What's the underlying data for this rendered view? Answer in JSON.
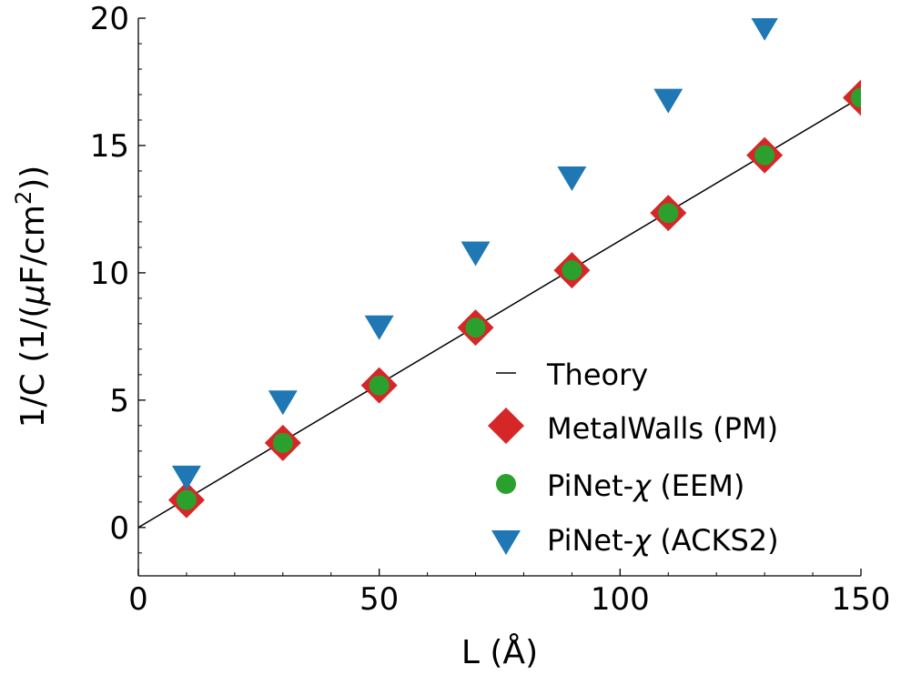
{
  "chart_data": {
    "type": "scatter",
    "title": "",
    "xlabel": "L (Å)",
    "ylabel_main": "1/C (1/(",
    "ylabel_mu": "μ",
    "ylabel_unit": "F/cm",
    "ylabel_sup": "2",
    "ylabel_end": "))",
    "xlim": [
      0,
      150
    ],
    "ylim": [
      -1.9,
      20
    ],
    "xticks": [
      0,
      50,
      100,
      150
    ],
    "xtick_labels": [
      "0",
      "50",
      "100",
      "150"
    ],
    "xminor": [
      10,
      20,
      30,
      40,
      60,
      70,
      80,
      90,
      110,
      120,
      130,
      140
    ],
    "yticks": [
      0,
      5,
      10,
      15,
      20
    ],
    "ytick_labels": [
      "0",
      "5",
      "10",
      "15",
      "20"
    ],
    "yminor": [
      -1,
      1,
      2,
      3,
      4,
      6,
      7,
      8,
      9,
      11,
      12,
      13,
      14,
      16,
      17,
      18,
      19
    ],
    "legend_position": "lower-right",
    "series": [
      {
        "name": "Theory",
        "legend_label": "Theory",
        "kind": "line",
        "color": "#000000",
        "x": [
          0,
          150
        ],
        "y": [
          0,
          16.9
        ]
      },
      {
        "name": "MetalWalls (PM)",
        "legend_label": "MetalWalls (PM)",
        "kind": "diamond",
        "color": "#d62728",
        "x": [
          10,
          30,
          50,
          70,
          90,
          110,
          130,
          150
        ],
        "y": [
          1.08,
          3.32,
          5.58,
          7.85,
          10.1,
          12.35,
          14.62,
          16.88
        ]
      },
      {
        "name": "PiNet-χ (EEM)",
        "legend_label": "PiNet-χ (EEM)",
        "legend_main": "PiNet-",
        "legend_chi": "χ",
        "legend_rest": " (EEM)",
        "kind": "circle",
        "color": "#2ca02c",
        "x": [
          10,
          30,
          50,
          70,
          90,
          110,
          130,
          150
        ],
        "y": [
          1.08,
          3.32,
          5.58,
          7.85,
          10.1,
          12.35,
          14.62,
          16.88
        ]
      },
      {
        "name": "PiNet-χ (ACKS2)",
        "legend_label": "PiNet-χ (ACKS2)",
        "legend_main": "PiNet-",
        "legend_chi": "χ",
        "legend_rest": " (ACKS2)",
        "kind": "triangle-down",
        "color": "#1f77b4",
        "x": [
          10,
          30,
          50,
          70,
          90,
          110,
          130
        ],
        "y": [
          2.0,
          4.95,
          7.9,
          10.8,
          13.75,
          16.8,
          19.65
        ]
      }
    ]
  }
}
